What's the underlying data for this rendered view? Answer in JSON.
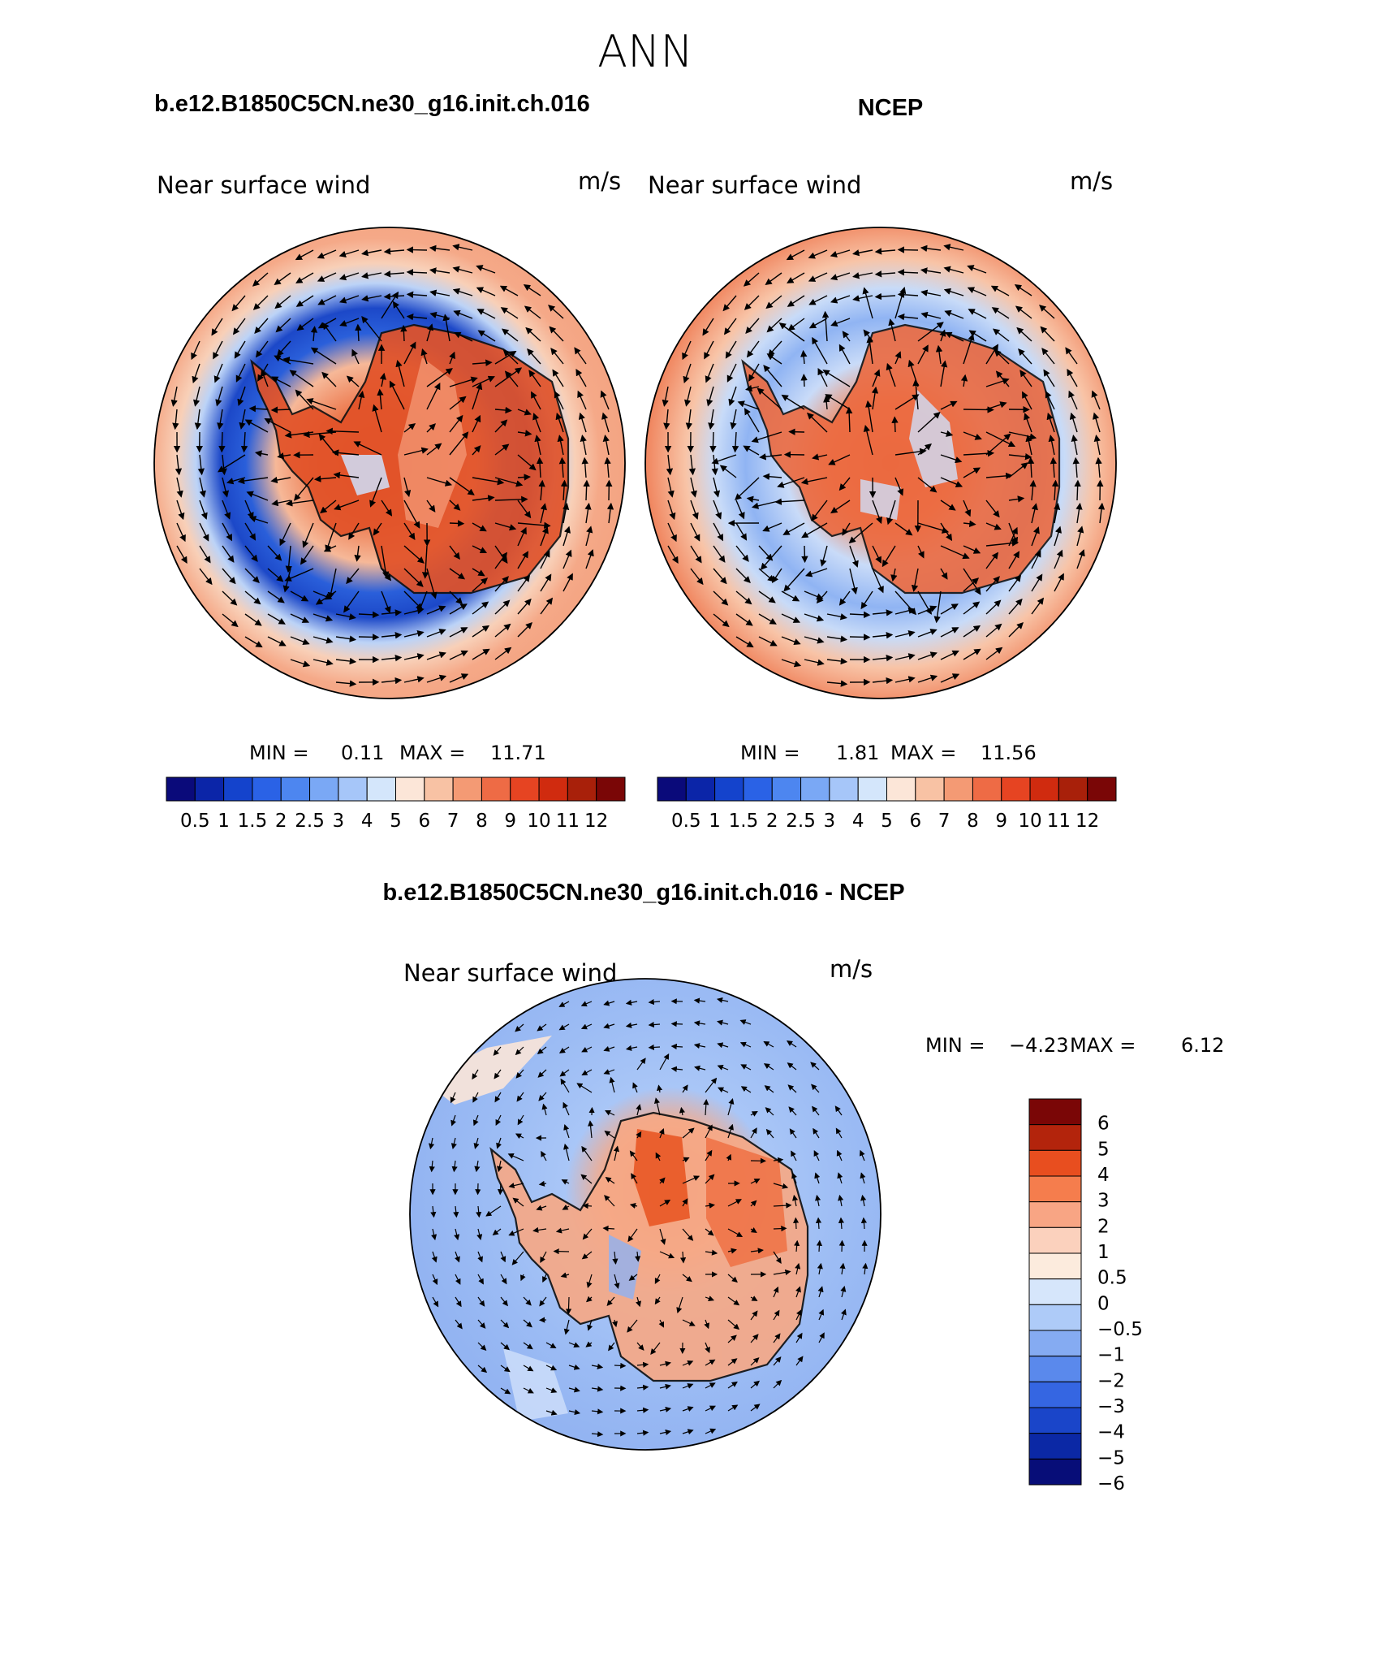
{
  "figure": {
    "season": "ANN",
    "panels": [
      {
        "id": "model",
        "case_title": "b.e12.B1850C5CN.ne30_g16.init.ch.016",
        "variable": "Near surface wind",
        "units": "m/s",
        "min_label": "MIN =",
        "min_value": "0.11",
        "max_label": "MAX =",
        "max_value": "11.71"
      },
      {
        "id": "obs",
        "case_title": "NCEP",
        "variable": "Near surface wind",
        "units": "m/s",
        "min_label": "MIN =",
        "min_value": "1.81",
        "max_label": "MAX =",
        "max_value": "11.56"
      },
      {
        "id": "diff",
        "case_title": "b.e12.B1850C5CN.ne30_g16.init.ch.016 - NCEP",
        "variable": "Near surface wind",
        "units": "m/s",
        "min_label": "MIN =",
        "min_value": "−4.23",
        "max_label": "MAX =",
        "max_value": "6.12"
      }
    ],
    "abs_colorbar": {
      "colors": [
        "#0a0a7a",
        "#0b25a8",
        "#1443cc",
        "#2a62e6",
        "#4d86f0",
        "#7aa8f5",
        "#a6c6f9",
        "#d4e6fb",
        "#fce6d8",
        "#f8c2a4",
        "#f49a74",
        "#ee6b45",
        "#e64422",
        "#d02b0f",
        "#a8200a",
        "#7a0606"
      ],
      "labels": [
        "0.5",
        "1",
        "1.5",
        "2",
        "2.5",
        "3",
        "4",
        "5",
        "6",
        "7",
        "8",
        "9",
        "10",
        "11",
        "12"
      ]
    },
    "diff_colorbar": {
      "colors": [
        "#7a0606",
        "#b3240c",
        "#e84e1f",
        "#f57d4d",
        "#f8a584",
        "#fbd1bd",
        "#fcebdd",
        "#d6e6fb",
        "#aecbf8",
        "#85abf2",
        "#5a89ec",
        "#3566e2",
        "#1a45c9",
        "#0b28a5",
        "#070d78"
      ],
      "labels": [
        "6",
        "5",
        "4",
        "3",
        "2",
        "1",
        "0.5",
        "0",
        "−0.5",
        "−1",
        "−2",
        "−3",
        "−4",
        "−5",
        "−6"
      ]
    },
    "map_colors": {
      "ocean_strong": "#f8c9ad",
      "belt": "#3063dc",
      "land_high": "#e8562a",
      "diff_ocean": "#9bbbf5",
      "diff_land": "#ee7448"
    }
  }
}
